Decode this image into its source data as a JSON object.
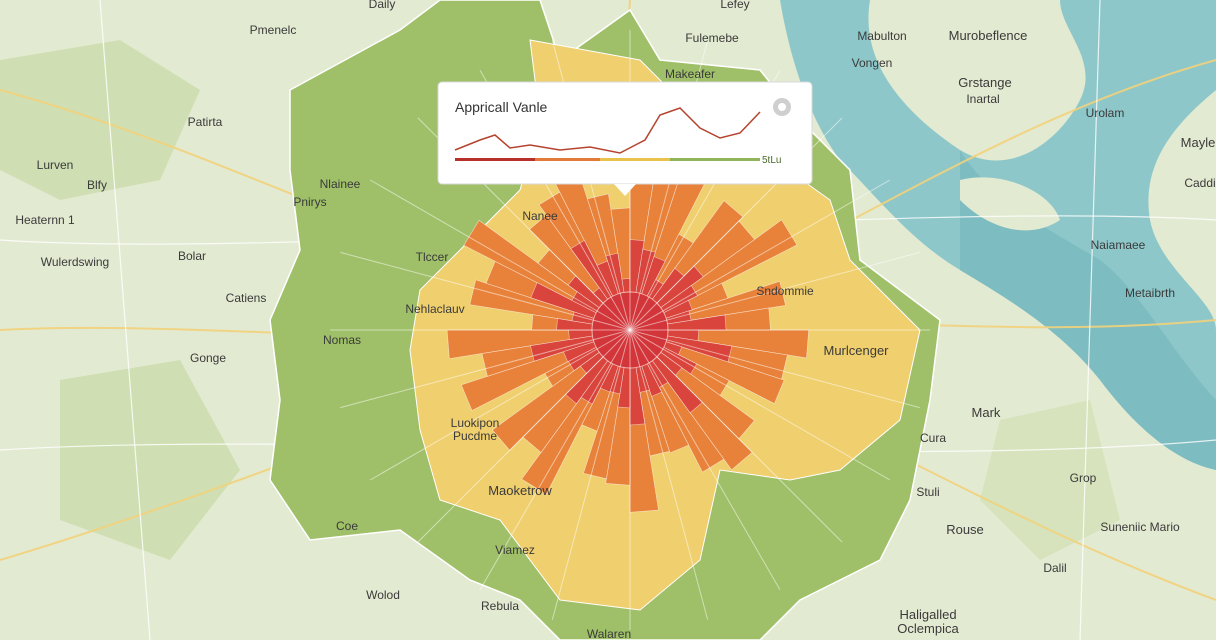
{
  "map": {
    "places": [
      "Daily",
      "Lefey",
      "Pmenelc",
      "Fulemebe",
      "Mabulton",
      "Murobeflence",
      "Vongen",
      "Makeafer",
      "Grstange",
      "Inartal",
      "Patirta",
      "Urolam",
      "Mayle",
      "Lurven",
      "Nlainee",
      "Caddi",
      "Blfy",
      "Pnirys",
      "Heaternn 1",
      "Nanee",
      "Tlccer",
      "Bolar",
      "Wulerdswing",
      "Naiamaee",
      "Metaibrth",
      "Catiens",
      "Sndommie",
      "Nehlaclauv",
      "Nomas",
      "Murlcenger",
      "Gonge",
      "Mark",
      "Luokipon",
      "Pucdme",
      "Cura",
      "Grop",
      "Maoketrow",
      "Stuli",
      "Coe",
      "Rouse",
      "Suneniic Mario",
      "Viamez",
      "Dalil",
      "Wolod",
      "Rebula",
      "Haligalled",
      "Oclempica",
      "Walaren"
    ],
    "tooltip": {
      "title": "Appricall Vanle",
      "value": "5tLu"
    }
  }
}
